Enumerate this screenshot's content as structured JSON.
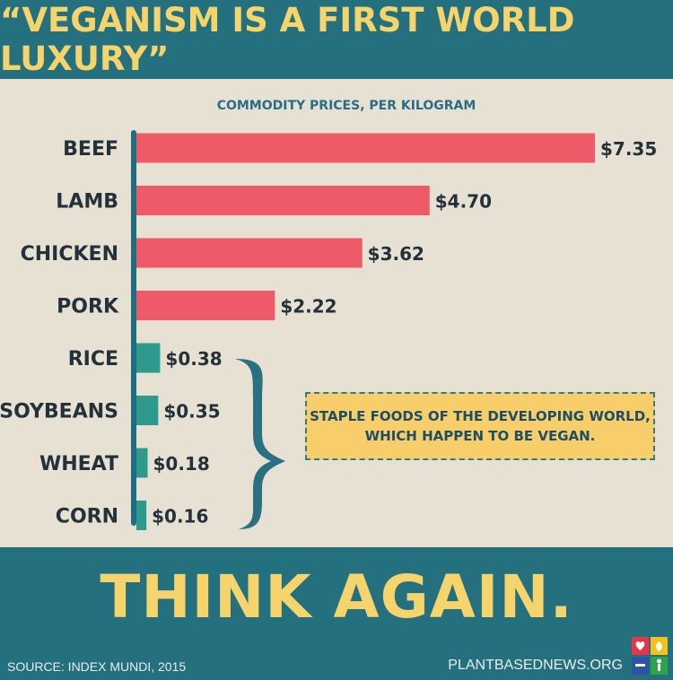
{
  "header": {
    "title": "“Veganism is a first world luxury”"
  },
  "chart_data": {
    "type": "bar",
    "orientation": "horizontal",
    "title": "Commodity prices, per kilogram",
    "categories": [
      "BEEF",
      "LAMB",
      "CHICKEN",
      "PORK",
      "RICE",
      "SOYBEANS",
      "WHEAT",
      "CORN"
    ],
    "values": [
      7.35,
      4.7,
      3.62,
      2.22,
      0.38,
      0.35,
      0.18,
      0.16
    ],
    "value_labels": [
      "$7.35",
      "$4.70",
      "$3.62",
      "$2.22",
      "$0.38",
      "$0.35",
      "$0.18",
      "$0.16"
    ],
    "xlim": [
      0,
      7.35
    ],
    "grid": false,
    "colors": {
      "meat": "#ef5a69",
      "staple": "#2e9a8d",
      "axis": "#1f6d80"
    }
  },
  "callout": {
    "line1": "Staple foods of the developing world,",
    "line2": "which happen to be vegan."
  },
  "footer": {
    "tagline": "Think again.",
    "source": "Source: Index Mundi, 2015",
    "site": "PLANTBASEDNEWS.ORG"
  },
  "logo": {
    "icon": "plant-based-news-logo-icon",
    "colors": [
      "#e8334a",
      "#f2c21b",
      "#2d54a3",
      "#2fa24a"
    ]
  }
}
